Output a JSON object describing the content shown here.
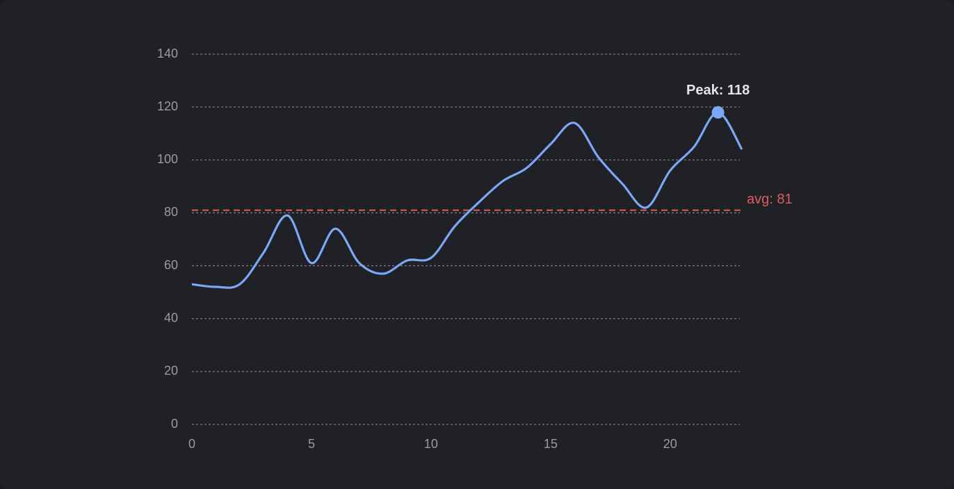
{
  "chart_data": {
    "type": "line",
    "x": [
      0,
      1,
      2,
      3,
      4,
      5,
      6,
      7,
      8,
      9,
      10,
      11,
      12,
      13,
      14,
      15,
      16,
      17,
      18,
      19,
      20,
      21,
      22,
      23
    ],
    "series": [
      {
        "color": "#7ba7f5",
        "values": [
          53,
          52,
          53,
          65,
          79,
          61,
          74,
          61,
          57,
          62,
          63,
          75,
          84,
          92,
          97,
          106,
          114,
          101,
          91,
          82,
          96,
          105,
          118,
          104
        ]
      }
    ],
    "xlim": [
      0,
      23
    ],
    "xticks": [
      0,
      5,
      10,
      15,
      20
    ],
    "ylim": [
      0,
      140
    ],
    "yticks": [
      0,
      20,
      40,
      60,
      80,
      100,
      120,
      140
    ],
    "grid": true,
    "reference_line": {
      "value": 81,
      "label": "avg: 81",
      "color": "#e05c5c"
    },
    "peak_annotation": {
      "x": 22,
      "value": 118,
      "text": "Peak: 118"
    }
  }
}
